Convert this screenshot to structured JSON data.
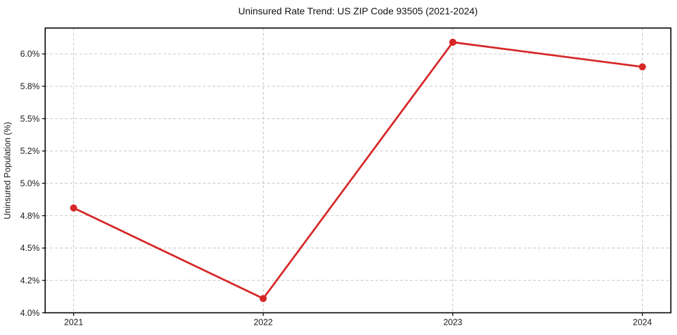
{
  "chart_data": {
    "type": "line",
    "title": "Uninsured Rate Trend: US ZIP Code 93505 (2021-2024)",
    "xlabel": "",
    "ylabel": "Uninsured Population (%)",
    "categories": [
      "2021",
      "2022",
      "2023",
      "2024"
    ],
    "x": [
      2021,
      2022,
      2023,
      2024
    ],
    "series": [
      {
        "name": "Uninsured Population (%)",
        "values": [
          4.81,
          4.11,
          6.09,
          5.9
        ]
      }
    ],
    "xlim": [
      2020.85,
      2024.15
    ],
    "ylim": [
      4.0,
      6.2
    ],
    "yticks": {
      "values": [
        4.0,
        4.25,
        4.5,
        4.75,
        5.0,
        5.25,
        5.5,
        5.75,
        6.0
      ],
      "labels": [
        "4.0%",
        "4.2%",
        "4.5%",
        "4.8%",
        "5.0%",
        "5.2%",
        "5.5%",
        "5.8%",
        "6.0%"
      ]
    },
    "grid": true,
    "grid_style": "dashed",
    "legend": false,
    "colors": {
      "line": "#d62728",
      "marker": "#d62728",
      "grid": "#c9c9c9",
      "spine": "#000000",
      "text": "#1a1a1a",
      "background": "#ffffff"
    }
  }
}
